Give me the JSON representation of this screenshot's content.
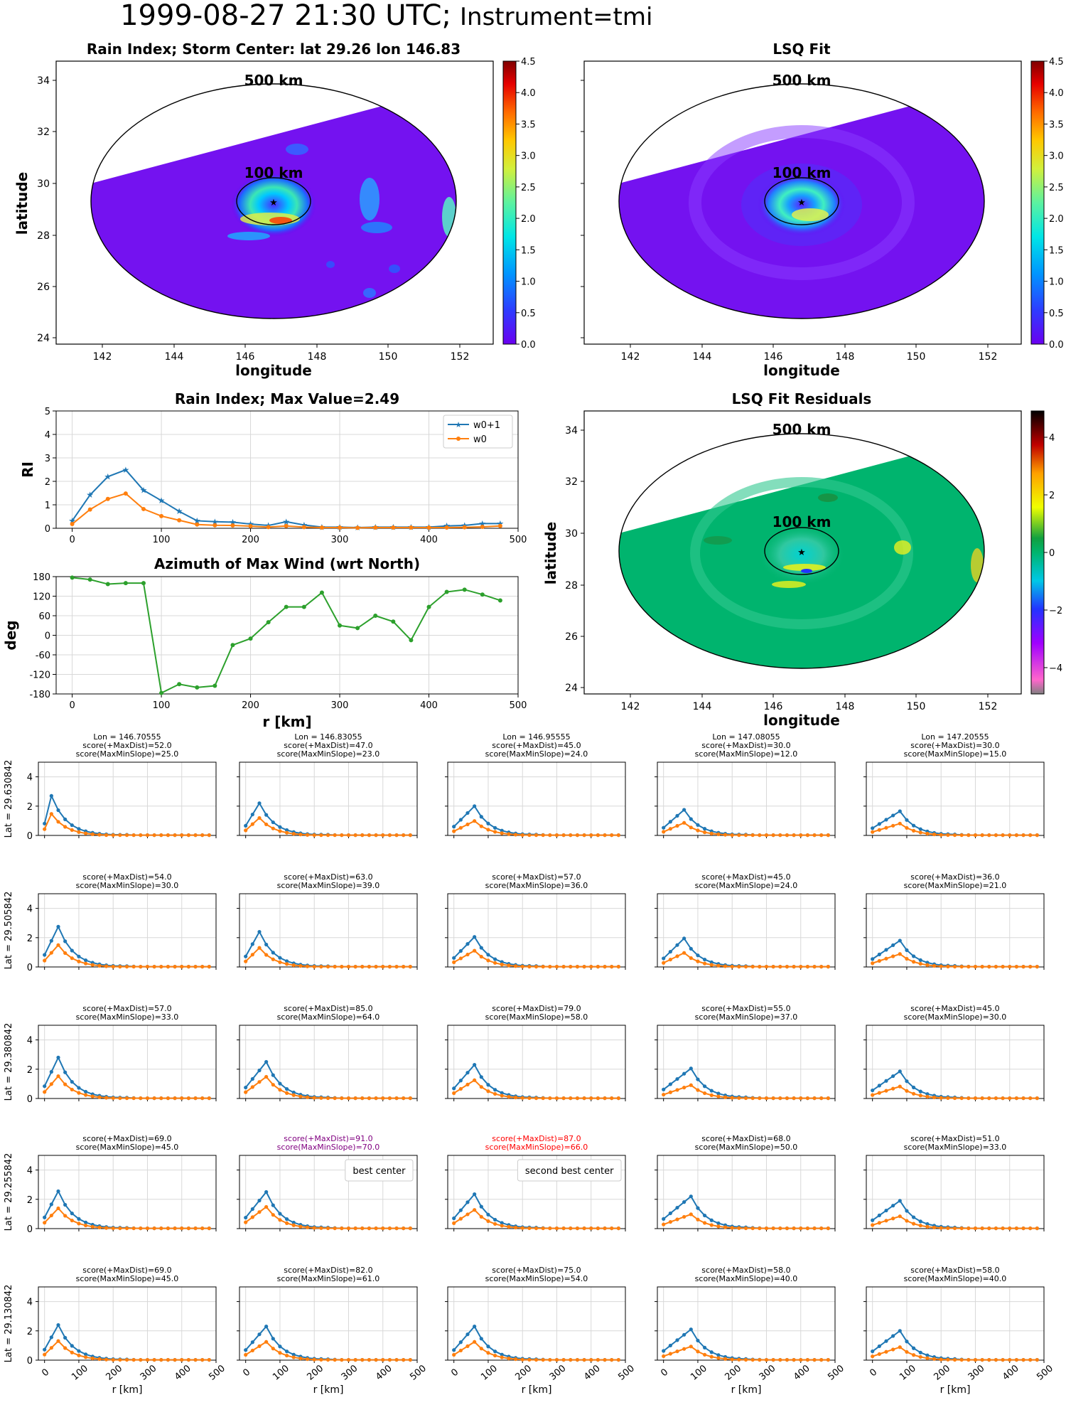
{
  "figure": {
    "title": "1999-08-27 21:30 UTC;",
    "title_instrument": "Instrument=tmi"
  },
  "maps": [
    {
      "id": "rain-index-map",
      "title": "Rain Index; Storm Center: lat 29.26 lon 146.83",
      "xlabel": "longitude",
      "ylabel": "latitude",
      "xticks": [
        "142",
        "144",
        "146",
        "148",
        "150",
        "152"
      ],
      "yticks": [
        "24",
        "26",
        "28",
        "30",
        "32",
        "34"
      ],
      "ring_outer_label": "500 km",
      "ring_inner_label": "100 km",
      "colorbar_ticks": [
        "0.0",
        "0.5",
        "1.0",
        "1.5",
        "2.0",
        "2.5",
        "3.0",
        "3.5",
        "4.0",
        "4.5"
      ]
    },
    {
      "id": "lsq-fit-map",
      "title": "LSQ Fit",
      "xlabel": "longitude",
      "ylabel": "",
      "xticks": [
        "142",
        "144",
        "146",
        "148",
        "150",
        "152"
      ],
      "yticks": [],
      "ring_outer_label": "500 km",
      "ring_inner_label": "100 km",
      "colorbar_ticks": [
        "0.0",
        "0.5",
        "1.0",
        "1.5",
        "2.0",
        "2.5",
        "3.0",
        "3.5",
        "4.0",
        "4.5"
      ]
    },
    {
      "id": "lsq-residuals-map",
      "title": "LSQ Fit Residuals",
      "xlabel": "longitude",
      "ylabel": "latitude",
      "xticks": [
        "142",
        "144",
        "146",
        "148",
        "150",
        "152"
      ],
      "yticks": [
        "24",
        "26",
        "28",
        "30",
        "32",
        "34"
      ],
      "ring_outer_label": "500 km",
      "ring_inner_label": "100 km",
      "colorbar_ticks": [
        "4",
        "2",
        "0",
        "−2",
        "−4"
      ]
    }
  ],
  "chart_data": [
    {
      "id": "rain-index-profile",
      "type": "line",
      "title": "Rain Index; Max Value=2.49",
      "xlabel": "",
      "ylabel": "RI",
      "xlim": [
        -18,
        500
      ],
      "ylim": [
        0,
        5
      ],
      "xticks": [
        0,
        100,
        200,
        300,
        400,
        500
      ],
      "yticks": [
        0,
        1,
        2,
        3,
        4,
        5
      ],
      "grid": true,
      "legend": "top-right",
      "x": [
        0,
        20,
        40,
        60,
        80,
        100,
        120,
        140,
        160,
        180,
        200,
        220,
        240,
        260,
        280,
        300,
        320,
        340,
        360,
        380,
        400,
        420,
        440,
        460,
        480
      ],
      "series": [
        {
          "name": "w0+1",
          "color": "#1f77b4",
          "marker": "star",
          "values": [
            0.32,
            1.42,
            2.2,
            2.49,
            1.62,
            1.18,
            0.72,
            0.32,
            0.28,
            0.26,
            0.18,
            0.12,
            0.28,
            0.14,
            0.05,
            0.05,
            0.03,
            0.05,
            0.05,
            0.05,
            0.05,
            0.1,
            0.12,
            0.2,
            0.2
          ]
        },
        {
          "name": "w0",
          "color": "#ff7f0e",
          "marker": "dot",
          "values": [
            0.18,
            0.8,
            1.25,
            1.48,
            0.82,
            0.52,
            0.34,
            0.16,
            0.13,
            0.12,
            0.09,
            0.05,
            0.1,
            0.05,
            0.03,
            0.03,
            0.02,
            0.03,
            0.03,
            0.03,
            0.03,
            0.03,
            0.04,
            0.06,
            0.1
          ]
        }
      ]
    },
    {
      "id": "azimuth-max-wind",
      "type": "line",
      "title": "Azimuth of Max Wind (wrt North)",
      "xlabel": "r [km]",
      "ylabel": "deg",
      "xlim": [
        -18,
        500
      ],
      "ylim": [
        -180,
        180
      ],
      "xticks": [
        0,
        100,
        200,
        300,
        400,
        500
      ],
      "yticks": [
        180,
        120,
        60,
        0,
        -60,
        -120,
        -180
      ],
      "grid": true,
      "x": [
        0,
        20,
        40,
        60,
        80,
        100,
        120,
        140,
        160,
        180,
        200,
        220,
        240,
        260,
        280,
        300,
        320,
        340,
        360,
        380,
        400,
        420,
        440,
        460,
        480
      ],
      "series": [
        {
          "color": "#2ca02c",
          "marker": "dot",
          "values": [
            177,
            171,
            157,
            160,
            160,
            -177,
            -150,
            -160,
            -155,
            -30,
            -10,
            40,
            87,
            87,
            131,
            30,
            22,
            60,
            42,
            -15,
            87,
            133,
            140,
            125,
            107
          ]
        }
      ]
    },
    {
      "id": "center-search-grid",
      "type": "line",
      "ylim": [
        0,
        5
      ],
      "yticks": [
        0,
        2,
        4
      ],
      "xlim": [
        -18,
        500
      ],
      "xticks": [
        0,
        100,
        200,
        300,
        400,
        500
      ],
      "xlabel": "r [km]",
      "lons": [
        "Lon = 146.70555",
        "Lon = 146.83055",
        "Lon = 146.95555",
        "Lon = 147.08055",
        "Lon = 147.20555"
      ],
      "lats": [
        "Lat = 29.630842",
        "Lat = 29.505842",
        "Lat = 29.380842",
        "Lat = 29.255842",
        "Lat = 29.130842"
      ],
      "x": [
        0,
        20,
        40,
        60,
        80,
        100,
        120,
        140,
        160,
        180,
        200,
        220,
        240,
        260,
        280,
        300,
        320,
        340,
        360,
        380,
        400,
        420,
        440,
        460,
        480
      ],
      "cells": [
        [
          {
            "s1": "score(+MaxDist)=52.0",
            "s2": "score(MaxMinSlope)=25.0",
            "peak": 2.7,
            "pi": 1,
            "ratio": 0.55
          },
          {
            "s1": "score(+MaxDist)=47.0",
            "s2": "score(MaxMinSlope)=23.0",
            "peak": 2.2,
            "pi": 2,
            "ratio": 0.55
          },
          {
            "s1": "score(+MaxDist)=45.0",
            "s2": "score(MaxMinSlope)=24.0",
            "peak": 2.0,
            "pi": 3,
            "ratio": 0.5
          },
          {
            "s1": "score(+MaxDist)=30.0",
            "s2": "score(MaxMinSlope)=12.0",
            "peak": 1.75,
            "pi": 3,
            "ratio": 0.5
          },
          {
            "s1": "score(+MaxDist)=30.0",
            "s2": "score(MaxMinSlope)=15.0",
            "peak": 1.65,
            "pi": 4,
            "ratio": 0.5
          }
        ],
        [
          {
            "s1": "score(+MaxDist)=54.0",
            "s2": "score(MaxMinSlope)=30.0",
            "peak": 2.75,
            "pi": 2,
            "ratio": 0.55
          },
          {
            "s1": "score(+MaxDist)=63.0",
            "s2": "score(MaxMinSlope)=39.0",
            "peak": 2.4,
            "pi": 2,
            "ratio": 0.55
          },
          {
            "s1": "score(+MaxDist)=57.0",
            "s2": "score(MaxMinSlope)=36.0",
            "peak": 2.05,
            "pi": 3,
            "ratio": 0.55
          },
          {
            "s1": "score(+MaxDist)=45.0",
            "s2": "score(MaxMinSlope)=24.0",
            "peak": 1.95,
            "pi": 3,
            "ratio": 0.5
          },
          {
            "s1": "score(+MaxDist)=36.0",
            "s2": "score(MaxMinSlope)=21.0",
            "peak": 1.8,
            "pi": 4,
            "ratio": 0.5
          }
        ],
        [
          {
            "s1": "score(+MaxDist)=57.0",
            "s2": "score(MaxMinSlope)=33.0",
            "peak": 2.8,
            "pi": 2,
            "ratio": 0.55
          },
          {
            "s1": "score(+MaxDist)=85.0",
            "s2": "score(MaxMinSlope)=64.0",
            "peak": 2.5,
            "pi": 3,
            "ratio": 0.6
          },
          {
            "s1": "score(+MaxDist)=79.0",
            "s2": "score(MaxMinSlope)=58.0",
            "peak": 2.3,
            "pi": 3,
            "ratio": 0.55
          },
          {
            "s1": "score(+MaxDist)=55.0",
            "s2": "score(MaxMinSlope)=37.0",
            "peak": 2.05,
            "pi": 4,
            "ratio": 0.45
          },
          {
            "s1": "score(+MaxDist)=45.0",
            "s2": "score(MaxMinSlope)=30.0",
            "peak": 1.85,
            "pi": 4,
            "ratio": 0.45
          }
        ],
        [
          {
            "s1": "score(+MaxDist)=69.0",
            "s2": "score(MaxMinSlope)=45.0",
            "peak": 2.55,
            "pi": 2,
            "ratio": 0.55
          },
          {
            "s1": "score(+MaxDist)=91.0",
            "s2": "score(MaxMinSlope)=70.0",
            "peak": 2.5,
            "pi": 3,
            "ratio": 0.6,
            "label": "best center",
            "color": "#800080"
          },
          {
            "s1": "score(+MaxDist)=87.0",
            "s2": "score(MaxMinSlope)=66.0",
            "peak": 2.35,
            "pi": 3,
            "ratio": 0.55,
            "label": "second best center",
            "color": "#ff0000"
          },
          {
            "s1": "score(+MaxDist)=68.0",
            "s2": "score(MaxMinSlope)=50.0",
            "peak": 2.2,
            "pi": 4,
            "ratio": 0.45
          },
          {
            "s1": "score(+MaxDist)=51.0",
            "s2": "score(MaxMinSlope)=33.0",
            "peak": 1.9,
            "pi": 4,
            "ratio": 0.45
          }
        ],
        [
          {
            "s1": "score(+MaxDist)=69.0",
            "s2": "score(MaxMinSlope)=45.0",
            "peak": 2.4,
            "pi": 2,
            "ratio": 0.55
          },
          {
            "s1": "score(+MaxDist)=82.0",
            "s2": "score(MaxMinSlope)=61.0",
            "peak": 2.3,
            "pi": 3,
            "ratio": 0.55
          },
          {
            "s1": "score(+MaxDist)=75.0",
            "s2": "score(MaxMinSlope)=54.0",
            "peak": 2.3,
            "pi": 3,
            "ratio": 0.55
          },
          {
            "s1": "score(+MaxDist)=58.0",
            "s2": "score(MaxMinSlope)=40.0",
            "peak": 2.1,
            "pi": 4,
            "ratio": 0.45
          },
          {
            "s1": "score(+MaxDist)=58.0",
            "s2": "score(MaxMinSlope)=40.0",
            "peak": 2.0,
            "pi": 4,
            "ratio": 0.45
          }
        ]
      ]
    }
  ]
}
